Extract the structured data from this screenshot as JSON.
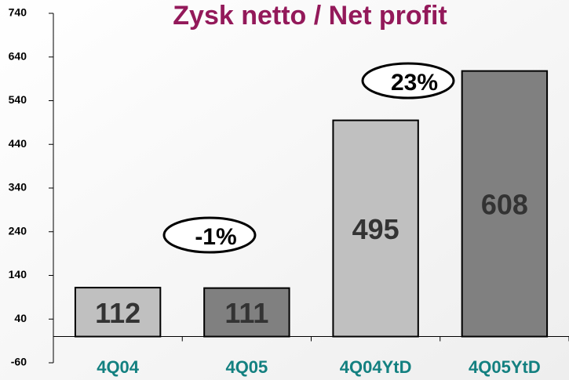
{
  "chart_data": {
    "type": "bar",
    "title": "Zysk netto / Net profit",
    "categories": [
      "4Q04",
      "4Q05",
      "4Q04YtD",
      "4Q05YtD"
    ],
    "values": [
      112,
      111,
      495,
      608
    ],
    "colors": [
      "#c0c0c0",
      "#808080",
      "#c0c0c0",
      "#808080"
    ],
    "ylim": [
      -60,
      740
    ],
    "yticks": [
      -60,
      40,
      140,
      240,
      340,
      440,
      540,
      640,
      740
    ],
    "annotations": [
      "-1%",
      "23%"
    ]
  }
}
